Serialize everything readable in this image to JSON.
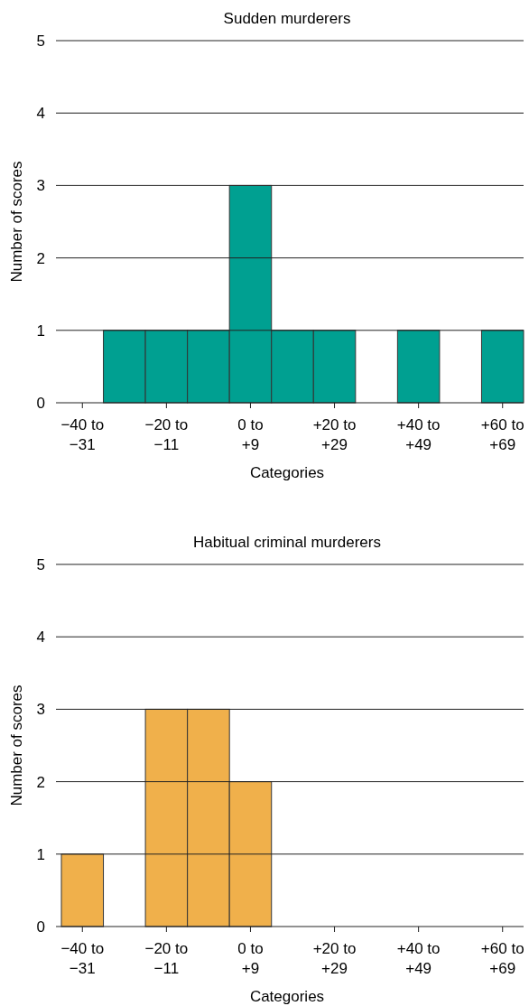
{
  "chart_data": [
    {
      "type": "bar",
      "title": "Sudden murderers",
      "xlabel": "Categories",
      "ylabel": "Number of scores",
      "categories": [
        "−40 to −31",
        null,
        "−20 to −11",
        null,
        "0 to +9",
        null,
        "+20 to +29",
        null,
        "+40 to +49",
        null,
        "+60 to +69"
      ],
      "values": [
        0,
        1,
        1,
        1,
        3,
        1,
        1,
        0,
        1,
        0,
        1
      ],
      "color": "#00a091",
      "ylim": [
        0,
        5
      ],
      "yticks": [
        0,
        1,
        2,
        3,
        4,
        5
      ],
      "grid": "y"
    },
    {
      "type": "bar",
      "title": "Habitual criminal murderers",
      "xlabel": "Categories",
      "ylabel": "Number of scores",
      "categories": [
        "−40 to −31",
        null,
        "−20 to −11",
        null,
        "0 to +9",
        null,
        "+20 to +29",
        null,
        "+40 to +49",
        null,
        "+60 to +69"
      ],
      "values": [
        1,
        0,
        3,
        3,
        2,
        0,
        0,
        0,
        0,
        0,
        0
      ],
      "color": "#f0b04b",
      "ylim": [
        0,
        5
      ],
      "yticks": [
        0,
        1,
        2,
        3,
        4,
        5
      ],
      "grid": "y"
    }
  ]
}
